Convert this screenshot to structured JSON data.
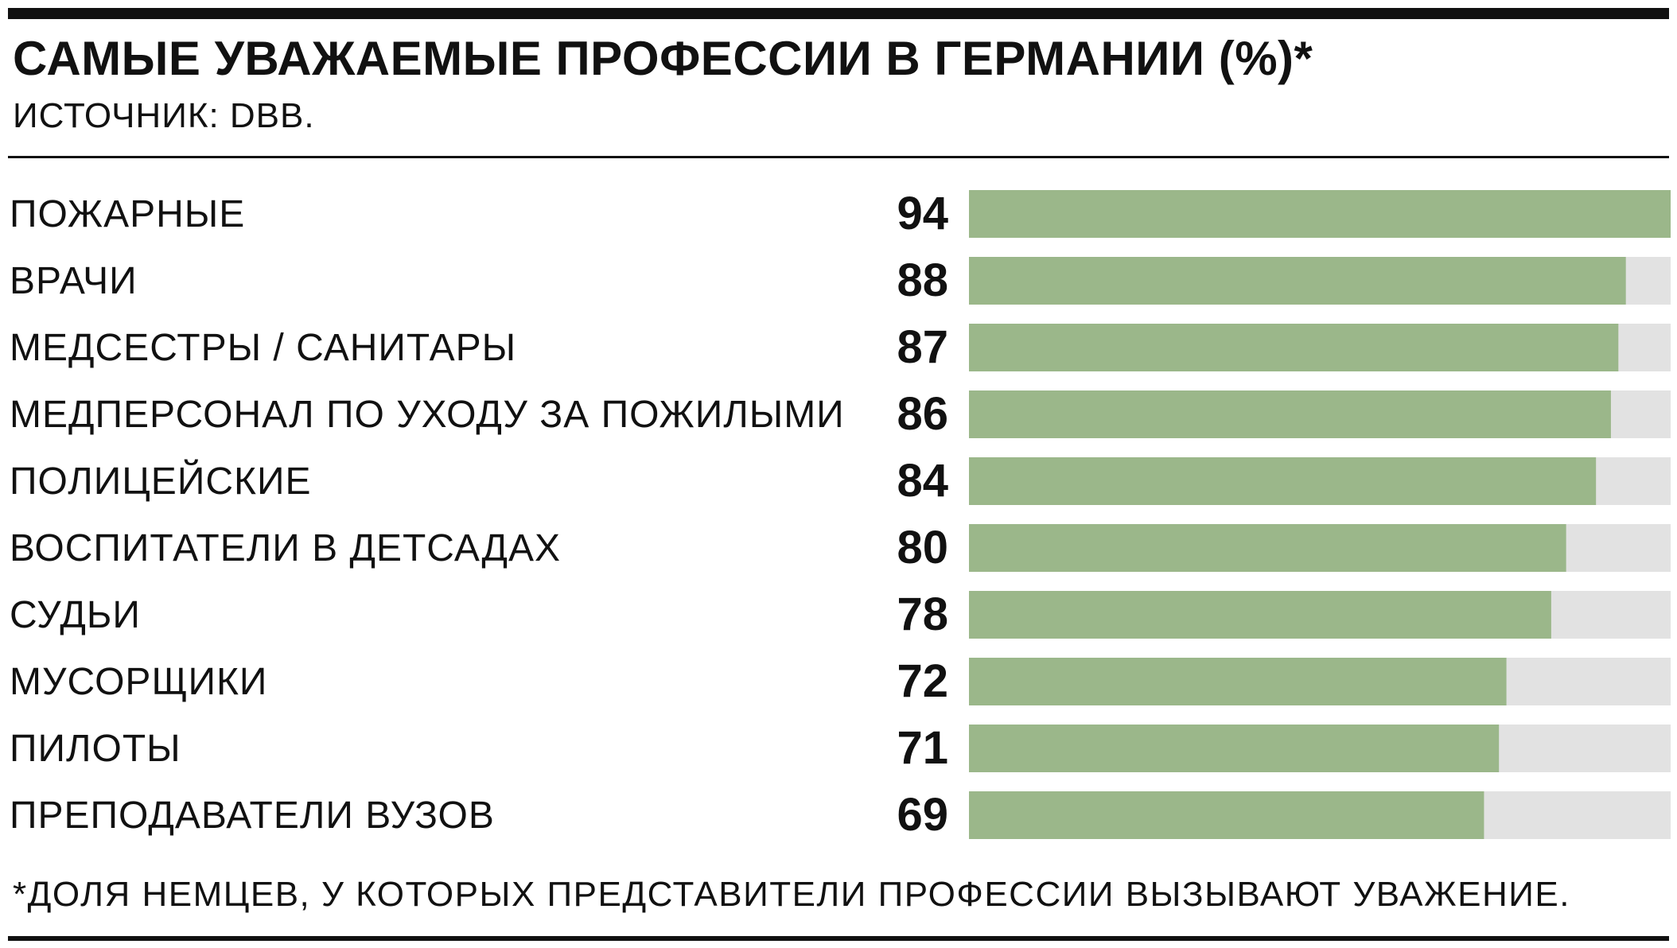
{
  "colors": {
    "bar": "#9bb78a",
    "track": "#e2e2e2",
    "text": "#111111"
  },
  "chart_data": {
    "type": "bar",
    "orientation": "horizontal",
    "title": "САМЫЕ УВАЖАЕМЫЕ ПРОФЕССИИ В ГЕРМАНИИ (%)*",
    "subtitle": "ИСТОЧНИК: DBB.",
    "footnote": "*ДОЛЯ НЕМЦЕВ, У КОТОРЫХ ПРЕДСТАВИТЕЛИ ПРОФЕССИИ ВЫЗЫВАЮТ УВАЖЕНИЕ.",
    "xlim": [
      0,
      94
    ],
    "categories": [
      "ПОЖАРНЫЕ",
      "ВРАЧИ",
      "МЕДСЕСТРЫ / САНИТАРЫ",
      "МЕДПЕРСОНАЛ ПО УХОДУ ЗА ПОЖИЛЫМИ",
      "ПОЛИЦЕЙСКИЕ",
      "ВОСПИТАТЕЛИ В ДЕТСАДАХ",
      "СУДЬИ",
      "МУСОРЩИКИ",
      "ПИЛОТЫ",
      "ПРЕПОДАВАТЕЛИ ВУЗОВ"
    ],
    "values": [
      94,
      88,
      87,
      86,
      84,
      80,
      78,
      72,
      71,
      69
    ]
  }
}
